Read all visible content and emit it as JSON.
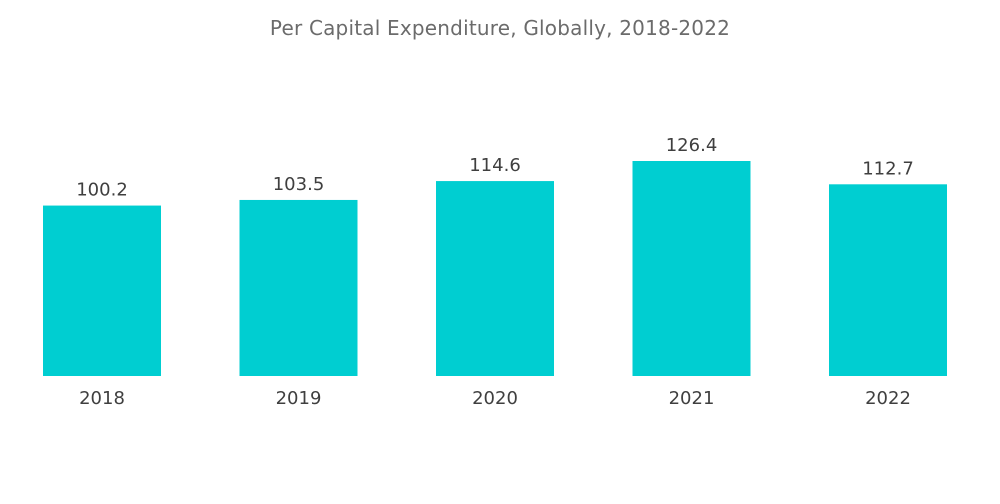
{
  "chart_data": {
    "type": "bar",
    "title": "Per Capital Expenditure, Globally, 2018-2022",
    "xlabel": "",
    "ylabel": "",
    "categories": [
      "2018",
      "2019",
      "2020",
      "2021",
      "2022"
    ],
    "values": [
      100.2,
      103.5,
      114.6,
      126.4,
      112.7
    ],
    "value_labels": [
      "100.2",
      "103.5",
      "114.6",
      "126.4",
      "112.7"
    ],
    "ylim": [
      0,
      126.4
    ],
    "grid": false,
    "legend": "none",
    "bar_color": "#00CED1"
  }
}
